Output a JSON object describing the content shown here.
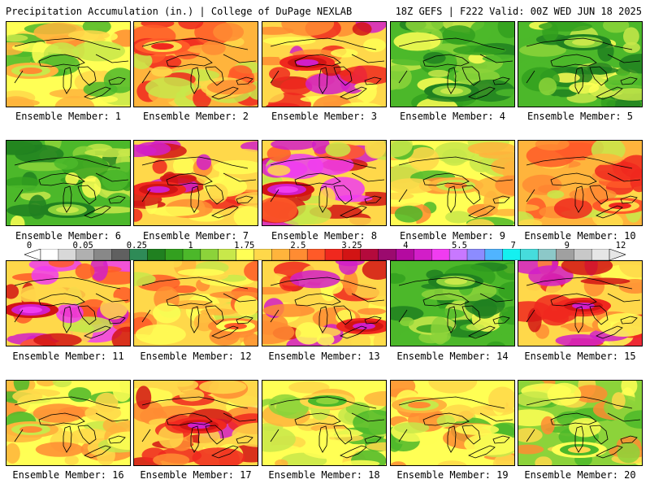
{
  "header": {
    "title_left": "Precipitation Accumulation (in.) | College of DuPage NEXLAB",
    "title_right": "18Z GEFS | F222 Valid: 00Z WED JUN 18 2025"
  },
  "colorbar": {
    "tick_labels": [
      "0",
      "0.05",
      "0.25",
      "1",
      "1.75",
      "2.5",
      "3.25",
      "4",
      "5.5",
      "7",
      "9",
      "12"
    ],
    "colors": [
      "#ffffff",
      "#d8d8d8",
      "#b0b0b0",
      "#888888",
      "#606060",
      "#2e8b57",
      "#208020",
      "#33a01f",
      "#4cb82a",
      "#8cd33a",
      "#c8e84a",
      "#ffff55",
      "#ffd84a",
      "#ffb43c",
      "#ff8c32",
      "#ff5a28",
      "#f0281e",
      "#d21414",
      "#b40a3c",
      "#9b0a6e",
      "#b40aa0",
      "#d21ec8",
      "#f03cf0",
      "#c878ff",
      "#8c8cff",
      "#50b4ff",
      "#14f0f0",
      "#46dcdc",
      "#8cc8c8",
      "#a0a0a0",
      "#c8c8c8",
      "#e6e6e6"
    ]
  },
  "panels": [
    {
      "label": "Ensemble Member: 1",
      "dominant": "yellow-orange",
      "max_region": "west"
    },
    {
      "label": "Ensemble Member: 2",
      "dominant": "orange-red",
      "max_region": "northwest"
    },
    {
      "label": "Ensemble Member: 3",
      "dominant": "red-magenta",
      "max_region": "center-west"
    },
    {
      "label": "Ensemble Member: 4",
      "dominant": "green",
      "max_region": "south"
    },
    {
      "label": "Ensemble Member: 5",
      "dominant": "green",
      "max_region": "north"
    },
    {
      "label": "Ensemble Member: 6",
      "dominant": "green",
      "max_region": "south"
    },
    {
      "label": "Ensemble Member: 7",
      "dominant": "red-magenta",
      "max_region": "west"
    },
    {
      "label": "Ensemble Member: 8",
      "dominant": "magenta",
      "max_region": "west"
    },
    {
      "label": "Ensemble Member: 9",
      "dominant": "yellow-orange",
      "max_region": "center"
    },
    {
      "label": "Ensemble Member: 10",
      "dominant": "orange-red",
      "max_region": "southeast"
    },
    {
      "label": "Ensemble Member: 11",
      "dominant": "magenta",
      "max_region": "west"
    },
    {
      "label": "Ensemble Member: 12",
      "dominant": "orange",
      "max_region": "southeast"
    },
    {
      "label": "Ensemble Member: 13",
      "dominant": "red-magenta",
      "max_region": "southeast"
    },
    {
      "label": "Ensemble Member: 14",
      "dominant": "green",
      "max_region": "north"
    },
    {
      "label": "Ensemble Member: 15",
      "dominant": "red-magenta",
      "max_region": "center"
    },
    {
      "label": "Ensemble Member: 16",
      "dominant": "yellow-orange",
      "max_region": "west"
    },
    {
      "label": "Ensemble Member: 17",
      "dominant": "red-magenta",
      "max_region": "center"
    },
    {
      "label": "Ensemble Member: 18",
      "dominant": "yellow",
      "max_region": "north"
    },
    {
      "label": "Ensemble Member: 19",
      "dominant": "yellow-orange",
      "max_region": "northwest"
    },
    {
      "label": "Ensemble Member: 20",
      "dominant": "green-yellow",
      "max_region": "south"
    }
  ]
}
